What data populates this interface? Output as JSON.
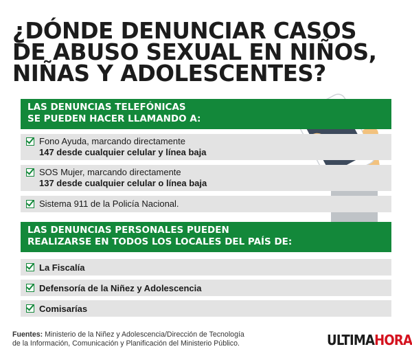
{
  "title": {
    "line1": "¿DÓNDE DENUNCIAR CASOS",
    "line2": "DE ABUSO SEXUAL EN NIÑOS,",
    "line3": "NIÑAS Y ADOLESCENTES?"
  },
  "phone_section": {
    "header_line1": "LAS DENUNCIAS TELEFÓNICAS",
    "header_line2": "SE PUEDEN HACER LLAMANDO A:",
    "items": [
      {
        "line1": "Fono Ayuda, marcando directamente",
        "line2": "147 desde cualquier celular y línea baja"
      },
      {
        "line1": "SOS Mujer, marcando directamente",
        "line2": "137 desde cualquier celular o línea baja"
      },
      {
        "line1": "Sistema 911 de la Policía Nacional.",
        "line2": ""
      }
    ]
  },
  "personal_section": {
    "header_line1": "LAS DENUNCIAS PERSONALES PUEDEN",
    "header_line2": "REALIZARSE EN TODOS LOS LOCALES DEL PAÍS DE:",
    "items": [
      {
        "label": "La Fiscalía"
      },
      {
        "label": "Defensoría de la Niñez y Adolescencia"
      },
      {
        "label": "Comisarías"
      }
    ]
  },
  "footer": {
    "label": "Fuentes:",
    "line1": " Ministerio de la Niñez y Adolescencia/Dirección de Tecnología",
    "line2": "de la Información, Comunicación y Planificación del Ministerio Público."
  },
  "brand": {
    "part1": "ULTIMA",
    "part2": "HORA"
  },
  "colors": {
    "accent_green": "#13883a",
    "row_gray": "#e3e3e3",
    "brand_red": "#d4121e",
    "phone_body": "#3d4a5c",
    "skin": "#f2c27e",
    "sleeve": "#bfc3c7"
  },
  "icons": [
    "checkbox-icon",
    "hand-holding-phone-illustration"
  ]
}
